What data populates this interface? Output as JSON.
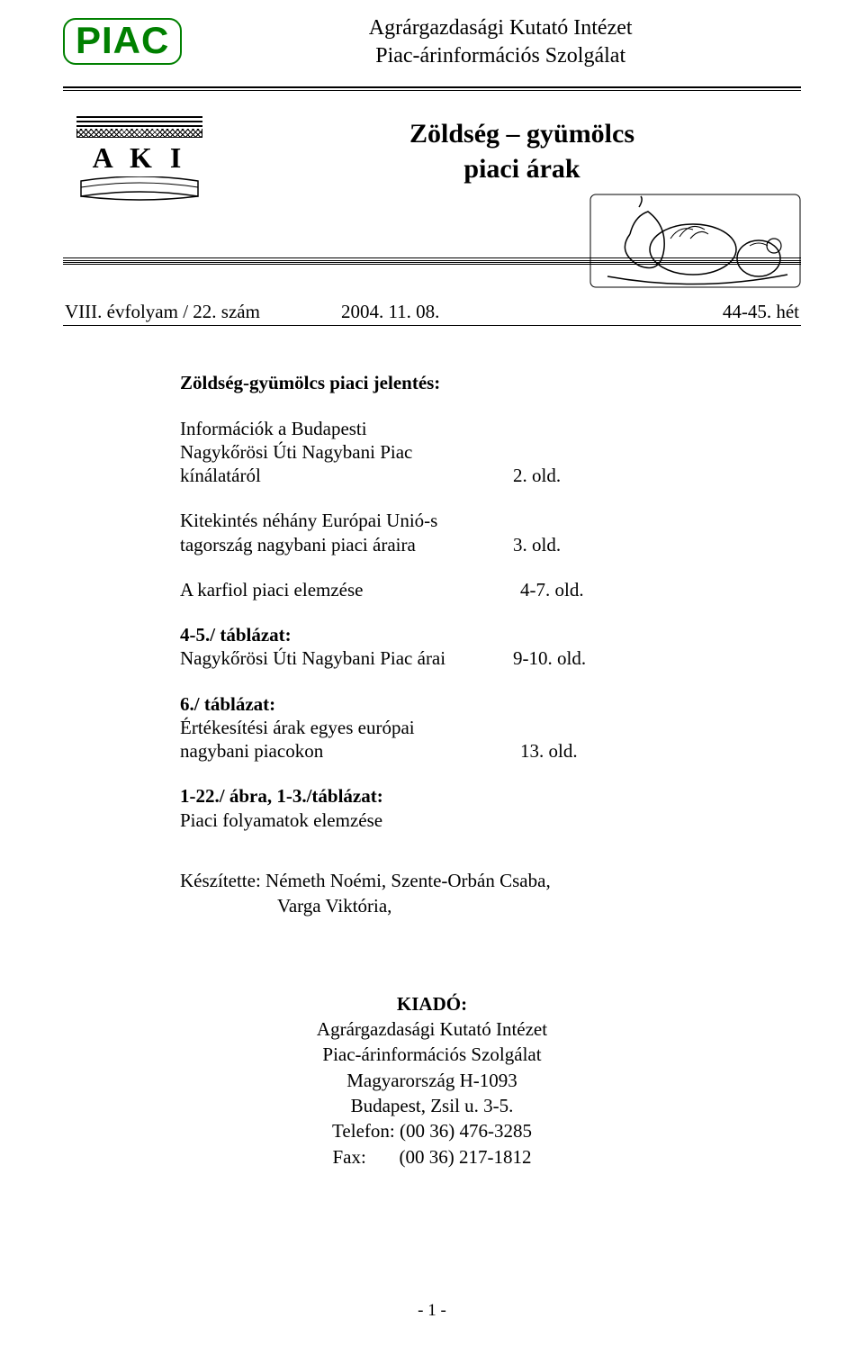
{
  "colors": {
    "piac_green": "#008000",
    "text": "#000000",
    "background": "#ffffff"
  },
  "header": {
    "badge": "PIAC",
    "line1": "Agrárgazdasági Kutató Intézet",
    "line2": "Piac-árinformációs Szolgálat"
  },
  "aki_label": "A K I",
  "main_title": {
    "line1": "Zöldség – gyümölcs",
    "line2": "piaci árak"
  },
  "issue": {
    "volume": "VIII. évfolyam / 22. szám",
    "date": "2004. 11. 08.",
    "week": "44-45. hét"
  },
  "toc": {
    "heading": "Zöldség-gyümölcs piaci jelentés:",
    "items": [
      {
        "label_lines": [
          "Információk a Budapesti",
          "Nagykőrösi Úti Nagybani Piac",
          "kínálatáról"
        ],
        "page": "2. old."
      },
      {
        "label_lines": [
          "Kitekintés néhány Európai Unió-s",
          "tagország nagybani piaci áraira"
        ],
        "page": "3. old."
      },
      {
        "label_lines": [
          "A karfiol piaci elemzése"
        ],
        "page": "4-7. old.",
        "pad": true
      },
      {
        "label_lines": [
          "4-5./ táblázat:",
          "Nagykőrösi Úti Nagybani Piac árai"
        ],
        "page": "9-10. old.",
        "bold_first": true
      },
      {
        "label_lines": [
          "6./ táblázat:",
          "Értékesítési árak egyes európai",
          "nagybani piacokon"
        ],
        "page": "13. old.",
        "bold_first": true,
        "pad": true
      },
      {
        "label_lines": [
          "1-22./ ábra, 1-3./táblázat:",
          "Piaci folyamatok elemzése"
        ],
        "page": "",
        "bold_first": true
      }
    ]
  },
  "authors": {
    "line1": "Készítette: Németh Noémi, Szente-Orbán Csaba,",
    "line2": "Varga Viktória,"
  },
  "publisher": {
    "heading": "KIADÓ:",
    "lines": [
      "Agrárgazdasági Kutató Intézet",
      "Piac-árinformációs Szolgálat",
      "Magyarország H-1093",
      "Budapest, Zsil u. 3-5."
    ],
    "phone": "Telefon: (00 36) 476-3285",
    "fax": "Fax:       (00 36) 217-1812"
  },
  "page_number": "- 1 -"
}
